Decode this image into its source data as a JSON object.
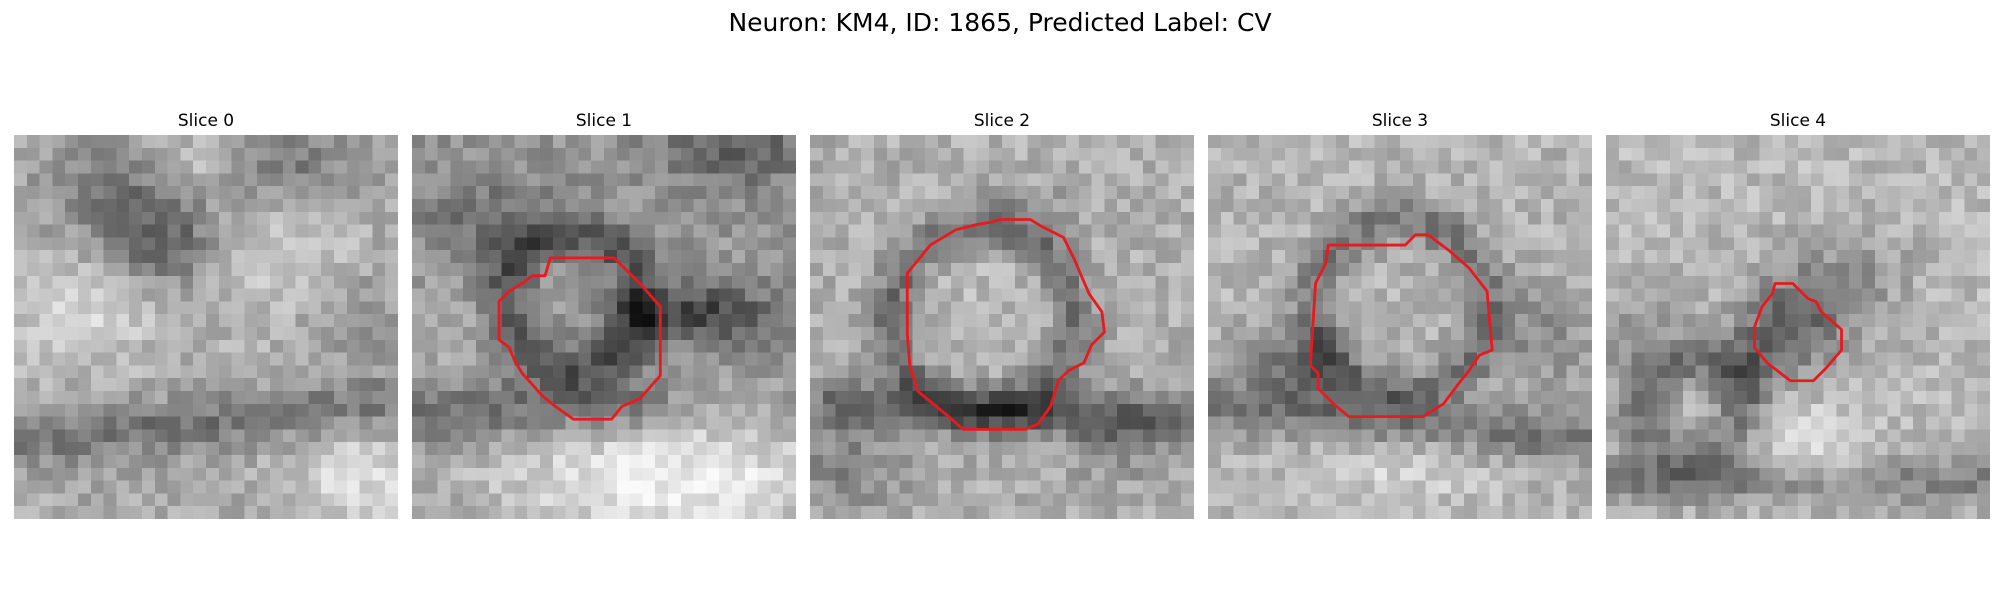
{
  "figure": {
    "title": "Neuron: KM4, ID: 1865, Predicted Label: CV"
  },
  "panels": [
    {
      "title": "Slice 0",
      "has_contour": false
    },
    {
      "title": "Slice 1",
      "has_contour": true
    },
    {
      "title": "Slice 2",
      "has_contour": true
    },
    {
      "title": "Slice 3",
      "has_contour": true
    },
    {
      "title": "Slice 4",
      "has_contour": true
    }
  ],
  "colors": {
    "contour": "#e8191f",
    "background": "#ffffff"
  }
}
